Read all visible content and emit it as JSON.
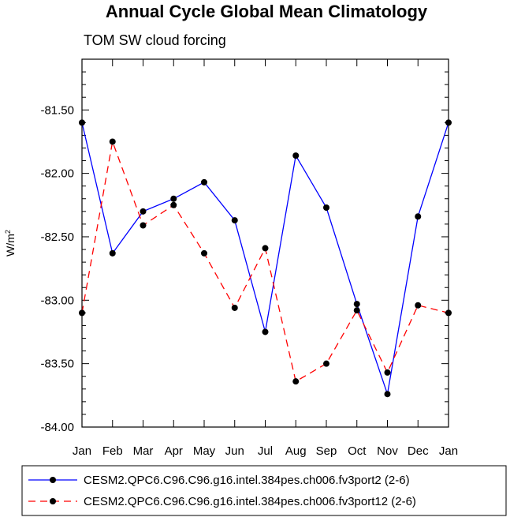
{
  "chart_data": {
    "type": "line",
    "title": "Annual Cycle Global Mean Climatology",
    "subtitle": "TOM SW cloud forcing",
    "ylabel_main": "W/m",
    "ylabel_sup": "2",
    "xlabel": "",
    "categories": [
      "Jan",
      "Feb",
      "Mar",
      "Apr",
      "May",
      "Jun",
      "Jul",
      "Aug",
      "Sep",
      "Oct",
      "Nov",
      "Dec",
      "Jan"
    ],
    "ylim": [
      -84.0,
      -81.1
    ],
    "yticks": [
      -84.0,
      -83.5,
      -83.0,
      -82.5,
      -82.0,
      -81.5
    ],
    "ytick_labels": [
      "-84.00",
      "-83.50",
      "-83.00",
      "-82.50",
      "-82.00",
      "-81.50"
    ],
    "grid": false,
    "legend_position": "bottom",
    "series": [
      {
        "name": "CESM2.QPC6.C96.C96.g16.intel.384pes.ch006.fv3port2 (2-6)",
        "color": "#0000ff",
        "dash": "solid",
        "values": [
          -81.6,
          -82.63,
          -82.3,
          -82.2,
          -82.07,
          -82.37,
          -83.25,
          -81.86,
          -82.27,
          -83.03,
          -83.74,
          -82.34,
          -81.6
        ]
      },
      {
        "name": "CESM2.QPC6.C96.C96.g16.intel.384pes.ch006.fv3port12 (2-6)",
        "color": "#ff0000",
        "dash": "dashed",
        "values": [
          -83.1,
          -81.75,
          -82.41,
          -82.25,
          -82.63,
          -83.06,
          -82.59,
          -83.64,
          -83.5,
          -83.08,
          -83.57,
          -83.04,
          -83.1
        ]
      }
    ]
  }
}
